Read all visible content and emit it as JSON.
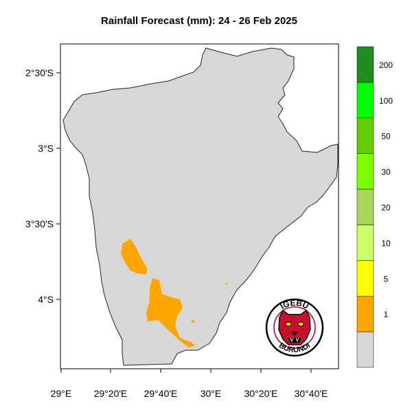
{
  "title": "Rainfall Forecast (mm): 24 - 26 Feb 2025",
  "map": {
    "lon_ticks": [
      "29°E",
      "29°20'E",
      "29°40'E",
      "30°E",
      "30°20'E",
      "30°40'E"
    ],
    "lat_ticks": [
      "2°30'S",
      "3°S",
      "3°30'S",
      "4°S"
    ]
  },
  "legend": {
    "bins": [
      {
        "label": "",
        "color": "#d7d7d7"
      },
      {
        "label": "1",
        "color": "#ffa500"
      },
      {
        "label": "5",
        "color": "#ffff00"
      },
      {
        "label": "10",
        "color": "#ccff66"
      },
      {
        "label": "20",
        "color": "#a8d45a"
      },
      {
        "label": "30",
        "color": "#7cfc00"
      },
      {
        "label": "50",
        "color": "#66cc00"
      },
      {
        "label": "100",
        "color": "#00ff00"
      },
      {
        "label": "200",
        "color": "#228b22"
      }
    ]
  },
  "logo": {
    "top_text": "IGEBU",
    "bottom_text": "BURUNDI"
  },
  "colors": {
    "country_fill": "#d7d7d7",
    "rain_1_5": "#ffa500",
    "border": "#222222"
  }
}
